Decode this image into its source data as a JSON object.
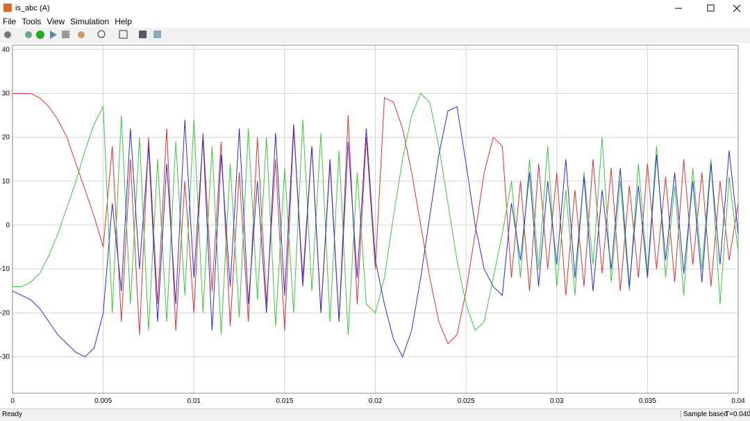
{
  "window": {
    "title": "is_abc (A)"
  },
  "menu": [
    "File",
    "Tools",
    "View",
    "Simulation",
    "Help"
  ],
  "status": {
    "left": "Ready",
    "mode": "Sample based",
    "time": "T=0.040"
  },
  "chart_data": {
    "type": "line",
    "x": [
      0,
      0.0005,
      0.001,
      0.0015,
      0.002,
      0.0025,
      0.003,
      0.0035,
      0.004,
      0.0045,
      0.005,
      0.0055,
      0.006,
      0.0065,
      0.007,
      0.0075,
      0.008,
      0.0085,
      0.009,
      0.0095,
      0.01,
      0.0105,
      0.011,
      0.0115,
      0.012,
      0.0125,
      0.013,
      0.0135,
      0.014,
      0.0145,
      0.015,
      0.0155,
      0.016,
      0.0165,
      0.017,
      0.0175,
      0.018,
      0.0185,
      0.019,
      0.0195,
      0.02,
      0.0205,
      0.021,
      0.0215,
      0.022,
      0.0225,
      0.023,
      0.0235,
      0.024,
      0.0245,
      0.025,
      0.0255,
      0.026,
      0.0265,
      0.027,
      0.0275,
      0.028,
      0.0285,
      0.029,
      0.0295,
      0.03,
      0.0305,
      0.031,
      0.0315,
      0.032,
      0.0325,
      0.033,
      0.0335,
      0.034,
      0.0345,
      0.035,
      0.0355,
      0.036,
      0.0365,
      0.037,
      0.0375,
      0.038,
      0.0385,
      0.039,
      0.0395,
      0.04
    ],
    "series": [
      {
        "color": "#e03030",
        "values": [
          30,
          30,
          30,
          29,
          27,
          24,
          20,
          14,
          8,
          2,
          -5,
          18,
          -22,
          15,
          -25,
          20,
          -18,
          22,
          -24,
          10,
          -20,
          21,
          -15,
          19,
          -23,
          12,
          -22,
          20,
          -18,
          15,
          -24,
          22,
          -12,
          18,
          -20,
          14,
          -22,
          25,
          -18,
          20,
          -10,
          29,
          28,
          22,
          12,
          0,
          -12,
          -22,
          -27,
          -25,
          -15,
          -2,
          12,
          20,
          18,
          -12,
          10,
          -15,
          14,
          -10,
          12,
          -16,
          8,
          -14,
          15,
          -11,
          13,
          -15,
          9,
          -12,
          14,
          -10,
          11,
          -13,
          15,
          -9,
          12,
          -14,
          10,
          -8,
          5
        ]
      },
      {
        "color": "#3cc83c",
        "values": [
          -14,
          -14,
          -13,
          -11,
          -7,
          -2,
          4,
          10,
          17,
          23,
          27,
          -20,
          25,
          -18,
          20,
          -24,
          15,
          -22,
          19,
          -16,
          24,
          -20,
          18,
          -25,
          14,
          -21,
          22,
          -17,
          20,
          -23,
          13,
          -20,
          24,
          -15,
          21,
          -22,
          17,
          -25,
          12,
          -18,
          -20,
          -12,
          2,
          15,
          25,
          30,
          28,
          18,
          5,
          -8,
          -18,
          -24,
          -22,
          -12,
          -2,
          10,
          -12,
          15,
          -10,
          18,
          -14,
          8,
          -16,
          12,
          -9,
          20,
          -13,
          10,
          -15,
          14,
          -11,
          18,
          -12,
          9,
          -16,
          13,
          -10,
          15,
          -18,
          11,
          -6
        ]
      },
      {
        "color": "#2a2ad8",
        "values": [
          -15,
          -16,
          -17,
          -19,
          -22,
          -25,
          -27,
          -29,
          -30,
          -28,
          -20,
          5,
          -15,
          22,
          -10,
          18,
          -22,
          14,
          -18,
          24,
          -12,
          20,
          -24,
          16,
          -14,
          22,
          -18,
          10,
          -20,
          21,
          -16,
          23,
          -14,
          18,
          -20,
          15,
          -22,
          19,
          -12,
          22,
          -8,
          -18,
          -26,
          -30,
          -24,
          -12,
          2,
          16,
          26,
          27,
          14,
          0,
          -10,
          -14,
          -16,
          5,
          -8,
          12,
          -14,
          10,
          -9,
          15,
          -12,
          11,
          -15,
          8,
          -10,
          13,
          -14,
          9,
          -12,
          16,
          -8,
          12,
          -11,
          10,
          -13,
          14,
          -9,
          17,
          -2
        ]
      }
    ],
    "xlim": [
      0,
      0.04
    ],
    "xticks": [
      0,
      0.005,
      0.01,
      0.015,
      0.02,
      0.025,
      0.03,
      0.035,
      0.04
    ],
    "ylim": [
      -38.3,
      41
    ],
    "yticks": [
      -30,
      -20,
      -10,
      0,
      10,
      20,
      30,
      40
    ],
    "grid": true
  }
}
